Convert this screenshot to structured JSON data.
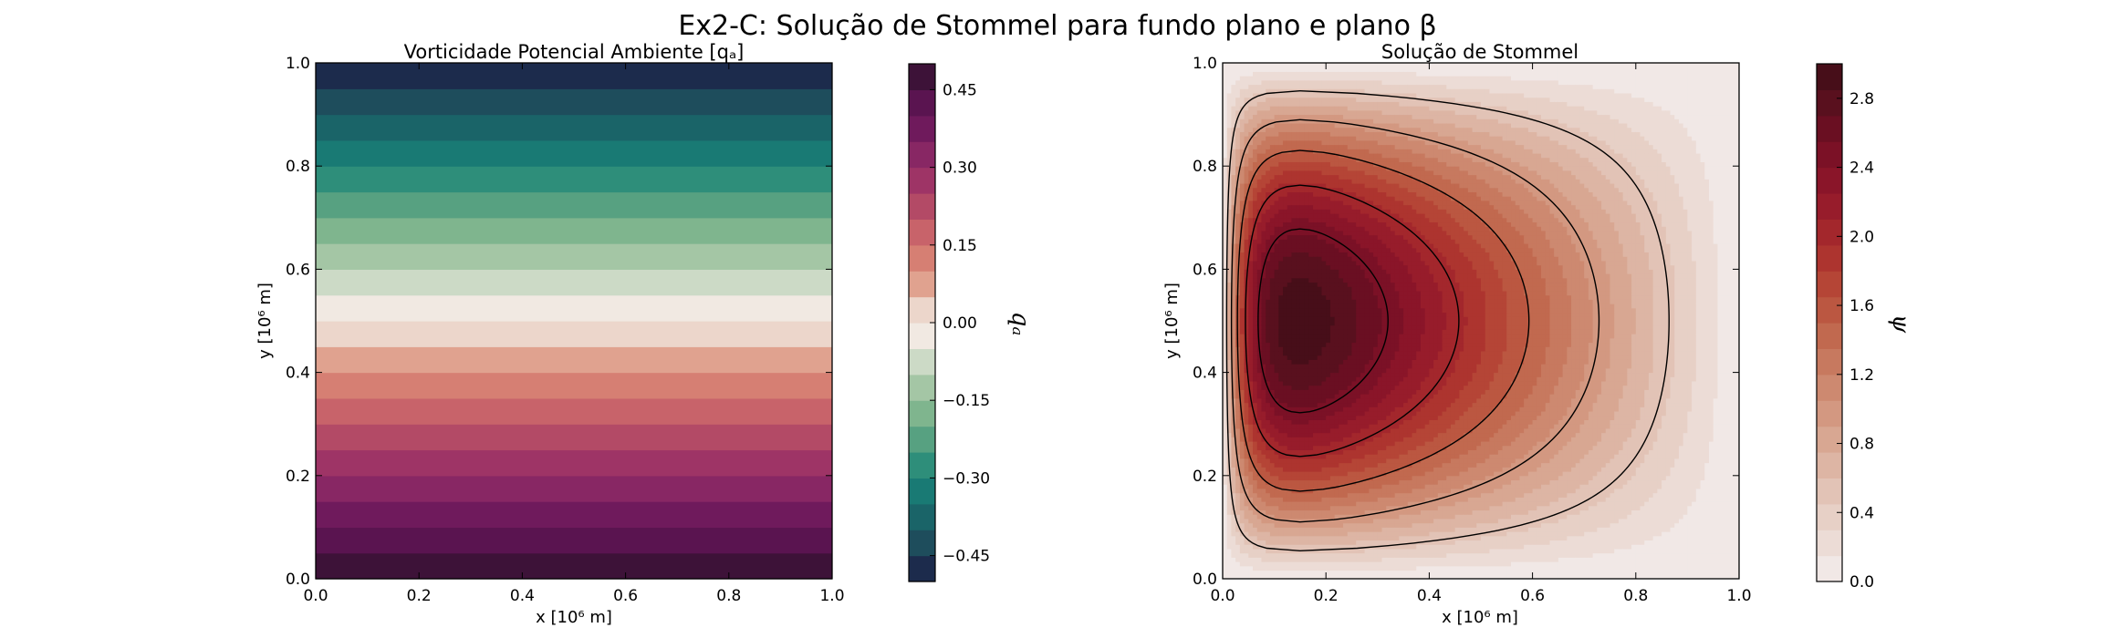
{
  "figure": {
    "title": "Ex2-C: Solução de Stommel para fundo plano e plano β"
  },
  "chart_data": [
    {
      "type": "heatmap",
      "subtype": "filled-contour",
      "title": "Vorticidade Potencial Ambiente [qₐ]",
      "xlabel": "x [10⁶ m]",
      "ylabel": "y [10⁶ m]",
      "xlim": [
        0,
        1
      ],
      "ylim": [
        0,
        1
      ],
      "xticks": [
        "0.0",
        "0.2",
        "0.4",
        "0.6",
        "0.8",
        "1.0"
      ],
      "yticks": [
        "0.0",
        "0.2",
        "0.4",
        "0.6",
        "0.8",
        "1.0"
      ],
      "field": "q_a = 0.5 - y (uniform in x)",
      "bands": [
        {
          "y_from": 0.0,
          "y_to": 0.05,
          "color": "#3d1238"
        },
        {
          "y_from": 0.05,
          "y_to": 0.1,
          "color": "#5a1450"
        },
        {
          "y_from": 0.1,
          "y_to": 0.15,
          "color": "#6f1a5c"
        },
        {
          "y_from": 0.15,
          "y_to": 0.2,
          "color": "#882764"
        },
        {
          "y_from": 0.2,
          "y_to": 0.25,
          "color": "#9e3466"
        },
        {
          "y_from": 0.25,
          "y_to": 0.3,
          "color": "#b34a66"
        },
        {
          "y_from": 0.3,
          "y_to": 0.35,
          "color": "#c8636a"
        },
        {
          "y_from": 0.35,
          "y_to": 0.4,
          "color": "#d67f73"
        },
        {
          "y_from": 0.4,
          "y_to": 0.45,
          "color": "#e0a28f"
        },
        {
          "y_from": 0.45,
          "y_to": 0.5,
          "color": "#ecd6cb"
        },
        {
          "y_from": 0.5,
          "y_to": 0.55,
          "color": "#f1e9e2"
        },
        {
          "y_from": 0.55,
          "y_to": 0.6,
          "color": "#ccdac6"
        },
        {
          "y_from": 0.6,
          "y_to": 0.65,
          "color": "#a4c6a5"
        },
        {
          "y_from": 0.65,
          "y_to": 0.7,
          "color": "#7fb58e"
        },
        {
          "y_from": 0.7,
          "y_to": 0.75,
          "color": "#57a181"
        },
        {
          "y_from": 0.75,
          "y_to": 0.8,
          "color": "#2e8e7a"
        },
        {
          "y_from": 0.8,
          "y_to": 0.85,
          "color": "#197a74"
        },
        {
          "y_from": 0.85,
          "y_to": 0.9,
          "color": "#1a6468"
        },
        {
          "y_from": 0.9,
          "y_to": 0.95,
          "color": "#1e4d5c"
        },
        {
          "y_from": 0.95,
          "y_to": 1.0,
          "color": "#1c2b4c"
        }
      ],
      "colorbar": {
        "label": "qₐ",
        "range": [
          -0.5,
          0.5
        ],
        "ticks": [
          {
            "value": 0.45,
            "label": "0.45"
          },
          {
            "value": 0.3,
            "label": "0.30"
          },
          {
            "value": 0.15,
            "label": "0.15"
          },
          {
            "value": 0.0,
            "label": "0.00"
          },
          {
            "value": -0.15,
            "label": "−0.15"
          },
          {
            "value": -0.3,
            "label": "−0.30"
          },
          {
            "value": -0.45,
            "label": "−0.45"
          }
        ],
        "colors_low_to_high": [
          "#1c2b4c",
          "#1e4d5c",
          "#1a6468",
          "#197a74",
          "#2e8e7a",
          "#57a181",
          "#7fb58e",
          "#a4c6a5",
          "#ccdac6",
          "#f1e9e2",
          "#ecd6cb",
          "#e0a28f",
          "#d67f73",
          "#c8636a",
          "#b34a66",
          "#9e3466",
          "#882764",
          "#6f1a5c",
          "#5a1450",
          "#3d1238"
        ]
      }
    },
    {
      "type": "heatmap",
      "subtype": "filled-contour-with-contour-lines",
      "title": "Solução de Stommel",
      "xlabel": "x [10⁶ m]",
      "ylabel": "y [10⁶ m]",
      "xlim": [
        0,
        1
      ],
      "ylim": [
        0,
        1
      ],
      "xticks": [
        "0.0",
        "0.2",
        "0.4",
        "0.6",
        "0.8",
        "1.0"
      ],
      "yticks": [
        "0.0",
        "0.2",
        "0.4",
        "0.6",
        "0.8",
        "1.0"
      ],
      "field": "ψ, maximum ≈ 2.95 near x = 0.07, y = 0.5 (western intensification)",
      "psi_max": 2.95,
      "gyre_center": [
        0.07,
        0.5
      ],
      "contour_lines": [
        0.5,
        1.0,
        1.5,
        2.0,
        2.5
      ],
      "colorbar": {
        "label": "ψ",
        "range": [
          0,
          3.0
        ],
        "ticks": [
          {
            "value": 0.0,
            "label": "0.0"
          },
          {
            "value": 0.4,
            "label": "0.4"
          },
          {
            "value": 0.8,
            "label": "0.8"
          },
          {
            "value": 1.2,
            "label": "1.2"
          },
          {
            "value": 1.6,
            "label": "1.6"
          },
          {
            "value": 2.0,
            "label": "2.0"
          },
          {
            "value": 2.4,
            "label": "2.4"
          },
          {
            "value": 2.8,
            "label": "2.8"
          }
        ],
        "colors_low_to_high": [
          "#f1e8e6",
          "#ecdcd6",
          "#e7d0c6",
          "#e2c3b6",
          "#ddb5a4",
          "#d8a792",
          "#d39881",
          "#cd8970",
          "#c7795f",
          "#c1694f",
          "#bb5741",
          "#b54536",
          "#ad342f",
          "#a3272c",
          "#971c2b",
          "#8a1529",
          "#7b1126",
          "#6a0f22",
          "#59101e",
          "#470e19"
        ]
      }
    }
  ]
}
